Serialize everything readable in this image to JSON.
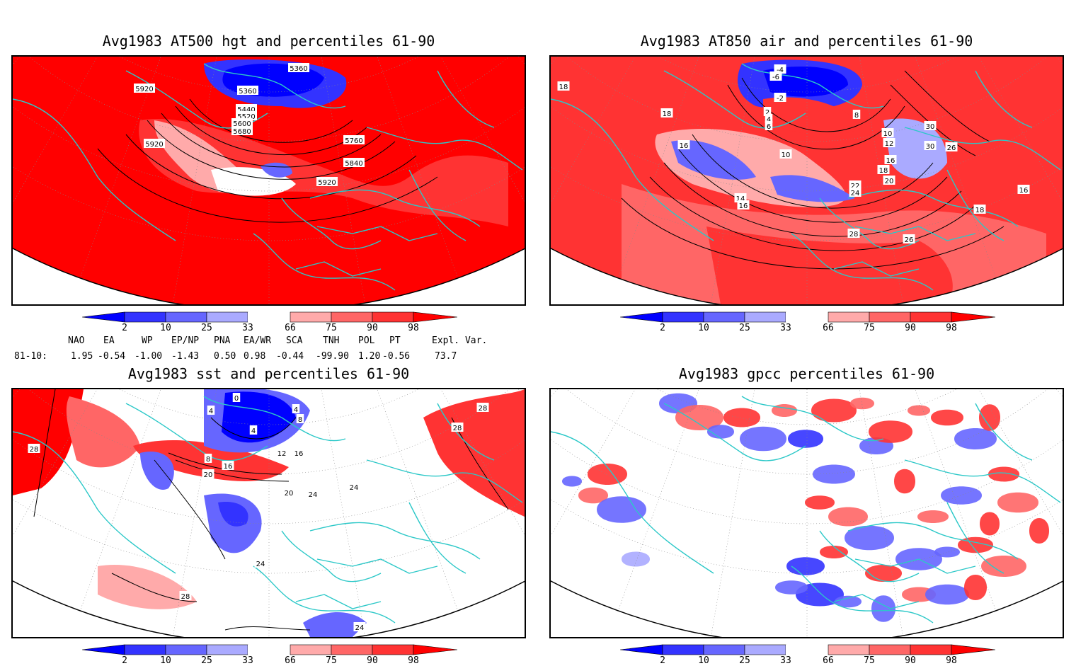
{
  "panels": [
    {
      "id": "p1",
      "title": "Avg1983 AT500 hgt and percentiles 61-90",
      "contour_labels": [
        "5360",
        "5360",
        "5440",
        "5520",
        "5600",
        "5680",
        "5760",
        "5840",
        "5920",
        "5920",
        "5920"
      ]
    },
    {
      "id": "p2",
      "title": "Avg1983 AT850 air and percentiles 61-90",
      "contour_labels": [
        "-4",
        "-6",
        "-2",
        "2",
        "4",
        "6",
        "8",
        "10",
        "10",
        "12",
        "14",
        "16",
        "16",
        "16",
        "18",
        "18",
        "18",
        "20",
        "22",
        "24",
        "26",
        "26",
        "28",
        "30",
        "30",
        "16",
        "18"
      ]
    },
    {
      "id": "p3",
      "title": "Avg1983 sst and percentiles 61-90",
      "contour_labels": [
        "28",
        "28",
        "28",
        "28",
        "24",
        "24",
        "24",
        "24",
        "20",
        "20",
        "16",
        "16",
        "12",
        "8",
        "8",
        "4",
        "4",
        "4",
        "0"
      ]
    },
    {
      "id": "p4",
      "title": "Avg1983 gpcc percentiles 61-90",
      "contour_labels": []
    }
  ],
  "colorbar": {
    "ticks": [
      "2",
      "10",
      "25",
      "33",
      "66",
      "75",
      "90",
      "98"
    ],
    "colors": {
      "below_2": "#0000ff",
      "c2_10": "#3333ff",
      "c10_25": "#6666ff",
      "c25_33": "#aaaaff",
      "c33_66": "#ffffff",
      "c66_75": "#ffaaaa",
      "c75_90": "#ff6666",
      "c90_98": "#ff3333",
      "above_98": "#ff0000"
    }
  },
  "indices": {
    "headers": [
      "NAO",
      "EA",
      "WP",
      "EP/NP",
      "PNA",
      "EA/WR",
      "SCA",
      "TNH",
      "POL",
      "PT",
      "Expl. Var."
    ],
    "row_label": "81-10:",
    "values": [
      "1.95",
      "-0.54",
      "-1.00",
      "-1.43",
      "0.50",
      "0.98",
      "-0.44",
      "-99.90",
      "1.20",
      "-0.56",
      "73.7"
    ]
  },
  "colors": {
    "land_outline": "#2cc8c8",
    "frame": "#000000"
  }
}
